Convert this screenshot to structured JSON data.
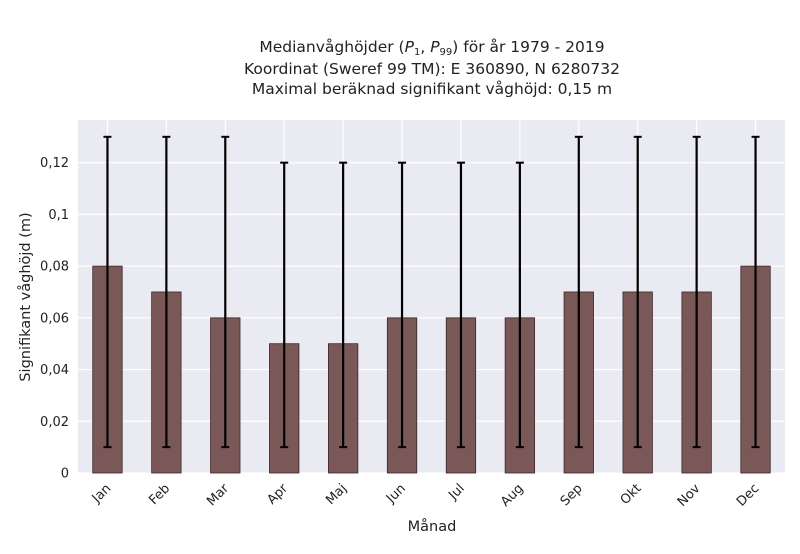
{
  "chart_data": {
    "type": "bar",
    "title_parts": {
      "prefix": "Medianvåghöjder (",
      "p_symbol": "P",
      "sub1": "1",
      "separator": ", ",
      "sub2": "99",
      "suffix": ") för år 1979 - 2019"
    },
    "title_lines": [
      "Koordinat (Sweref 99 TM): E 360890, N 6280732",
      "Maximal beräknad signifikant våghöjd: 0,15 m"
    ],
    "xlabel": "Månad",
    "ylabel": "Signifikant våghöjd (m)",
    "categories": [
      "Jan",
      "Feb",
      "Mar",
      "Apr",
      "Maj",
      "Jun",
      "Jul",
      "Aug",
      "Sep",
      "Okt",
      "Nov",
      "Dec"
    ],
    "values": [
      0.08,
      0.07,
      0.06,
      0.05,
      0.05,
      0.06,
      0.06,
      0.06,
      0.07,
      0.07,
      0.07,
      0.08
    ],
    "error_low": [
      0.01,
      0.01,
      0.01,
      0.01,
      0.01,
      0.01,
      0.01,
      0.01,
      0.01,
      0.01,
      0.01,
      0.01
    ],
    "error_high": [
      0.13,
      0.13,
      0.13,
      0.12,
      0.12,
      0.12,
      0.12,
      0.12,
      0.13,
      0.13,
      0.13,
      0.13
    ],
    "ylim": [
      0,
      0.1365
    ],
    "yticks": [
      0,
      0.02,
      0.04,
      0.06,
      0.08,
      0.1,
      0.12
    ],
    "ytick_labels": [
      "0",
      "0,02",
      "0,04",
      "0,06",
      "0,08",
      "0,1",
      "0,12"
    ],
    "grid": true,
    "colors": {
      "bar": "#7a5858",
      "bar_edge": "#3a2828",
      "error": "#000000",
      "background": "#eaeaf2",
      "grid": "#ffffff"
    }
  }
}
